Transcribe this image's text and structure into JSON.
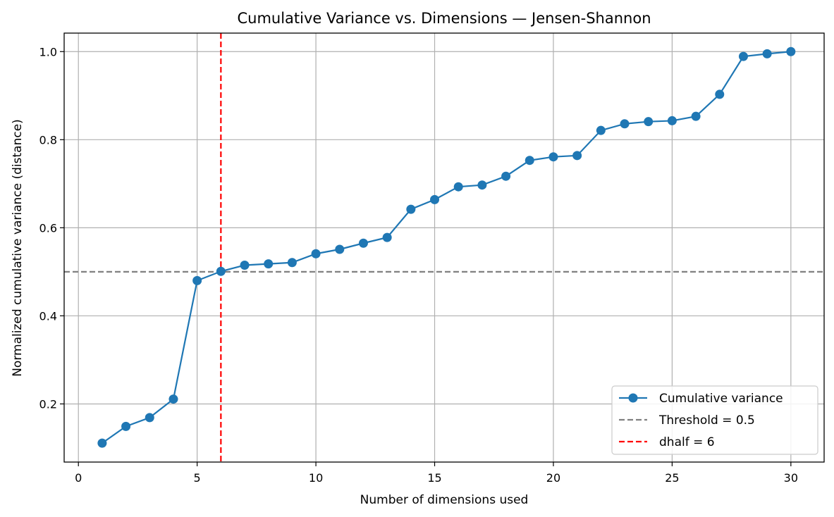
{
  "chart_data": {
    "type": "line",
    "title": "Cumulative Variance vs. Dimensions — Jensen-Shannon",
    "xlabel": "Number of dimensions used",
    "ylabel": "Normalized cumulative variance (distance)",
    "xlim": [
      -0.6,
      31.4
    ],
    "ylim": [
      0.068,
      1.042
    ],
    "xticks": [
      0,
      5,
      10,
      15,
      20,
      25,
      30
    ],
    "yticks": [
      0.2,
      0.4,
      0.6,
      0.8,
      1.0
    ],
    "xtick_labels": [
      "0",
      "5",
      "10",
      "15",
      "20",
      "25",
      "30"
    ],
    "ytick_labels": [
      "0.2",
      "0.4",
      "0.6",
      "0.8",
      "1.0"
    ],
    "grid": true,
    "legend_position": "lower-right",
    "series": [
      {
        "name": "Cumulative variance",
        "color": "#1f77b4",
        "marker": "circle",
        "x": [
          1,
          2,
          3,
          4,
          5,
          6,
          7,
          8,
          9,
          10,
          11,
          12,
          13,
          14,
          15,
          16,
          17,
          18,
          19,
          20,
          21,
          22,
          23,
          24,
          25,
          26,
          27,
          28,
          29,
          30
        ],
        "values": [
          0.111,
          0.149,
          0.169,
          0.211,
          0.48,
          0.501,
          0.515,
          0.518,
          0.521,
          0.541,
          0.551,
          0.565,
          0.578,
          0.642,
          0.664,
          0.693,
          0.697,
          0.717,
          0.753,
          0.761,
          0.764,
          0.821,
          0.836,
          0.841,
          0.843,
          0.853,
          0.903,
          0.989,
          0.995,
          1.0
        ]
      }
    ],
    "reference_lines": [
      {
        "name": "Threshold = 0.5",
        "orientation": "horizontal",
        "value": 0.5,
        "color": "#808080",
        "style": "dashed"
      },
      {
        "name": "dhalf = 6",
        "orientation": "vertical",
        "value": 6,
        "color": "#ff0000",
        "style": "dashed"
      }
    ]
  }
}
